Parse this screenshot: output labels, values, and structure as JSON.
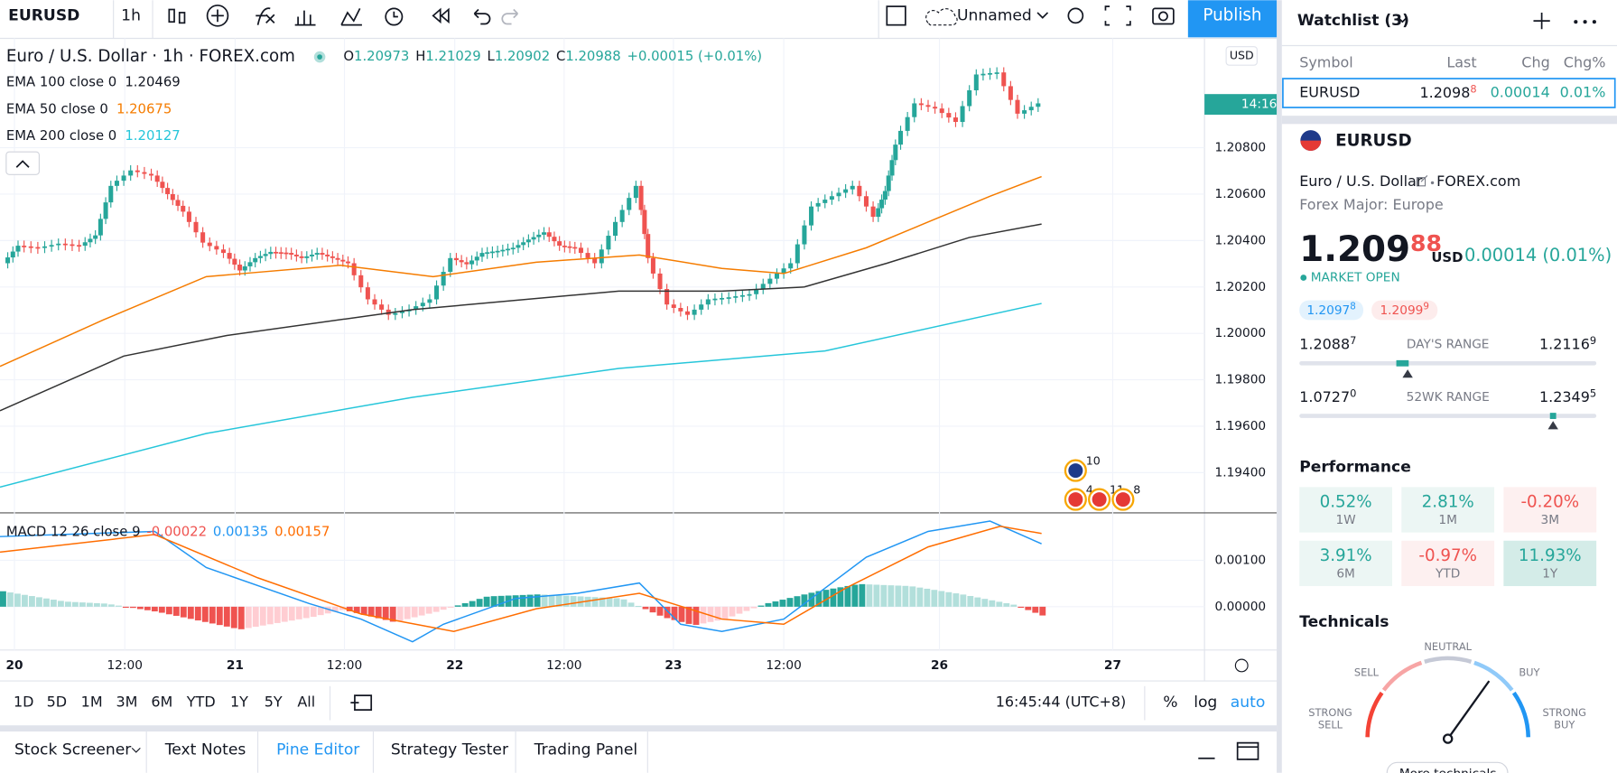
{
  "toolbar": {
    "symbol": "EURUSD",
    "interval": "1h",
    "layout_name": "Unnamed",
    "publish": "Publish"
  },
  "legend": {
    "title": "Euro / U.S. Dollar · 1h · FOREX.com",
    "ohlc": [
      {
        "label": "O",
        "value": "1.20973"
      },
      {
        "label": "H",
        "value": "1.21029"
      },
      {
        "label": "L",
        "value": "1.20902"
      },
      {
        "label": "C",
        "value": "1.20988"
      }
    ],
    "change": "+0.00015 (+0.01%)",
    "indicators": [
      {
        "name": "EMA 100 close 0",
        "value": "1.20469",
        "color": "#131722"
      },
      {
        "name": "EMA 50 close 0",
        "value": "1.20675",
        "color": "#f57c00"
      },
      {
        "name": "EMA 200 close 0",
        "value": "1.20127",
        "color": "#26c6da"
      }
    ]
  },
  "price_axis": {
    "currency": "USD",
    "labels": [
      "1.20800",
      "1.20600",
      "1.20400",
      "1.20200",
      "1.20000",
      "1.19800",
      "1.19600",
      "1.19400"
    ],
    "countdown": "14:16"
  },
  "macd": {
    "name": "MACD 12 26 close 9",
    "values": [
      {
        "value": "-0.00022",
        "color": "#ef5350"
      },
      {
        "value": "0.00135",
        "color": "#2196f3"
      },
      {
        "value": "0.00157",
        "color": "#ff6d00"
      }
    ],
    "axis_labels": [
      "0.00100",
      "0.00000"
    ]
  },
  "time_axis": [
    "20",
    "12:00",
    "21",
    "12:00",
    "22",
    "12:00",
    "23",
    "12:00",
    "26",
    "27"
  ],
  "ranges": [
    "1D",
    "5D",
    "1M",
    "3M",
    "6M",
    "YTD",
    "1Y",
    "5Y",
    "All"
  ],
  "clock": "16:45:44 (UTC+8)",
  "scale_options": [
    "%",
    "log",
    "auto"
  ],
  "tabs": [
    "Stock Screener",
    "Text Notes",
    "Pine Editor",
    "Strategy Tester",
    "Trading Panel"
  ],
  "events": [
    "10",
    "4",
    "11",
    "8"
  ],
  "watchlist": {
    "title": "Watchlist (3)",
    "columns": [
      "Symbol",
      "Last",
      "Chg",
      "Chg%"
    ],
    "rows": [
      {
        "symbol": "EURUSD",
        "last": "1.2098",
        "last_sup": "8",
        "chg": "0.00014",
        "chg_pct": "0.01%"
      }
    ]
  },
  "details": {
    "symbol": "EURUSD",
    "description": "Euro / U.S. Dollar",
    "exchange": "FOREX.com",
    "category": "Forex Major: Europe",
    "price": "1.209",
    "price_sup": "88",
    "currency": "USD",
    "change": "0.00014 (0.01%)",
    "status": "MARKET OPEN",
    "bid": "1.2097",
    "bid_sup": "8",
    "ask": "1.2099",
    "ask_sup": "9",
    "days_range": {
      "label": "DAY'S RANGE",
      "low": "1.2088",
      "low_sup": "7",
      "high": "1.2116",
      "high_sup": "9"
    },
    "week52_range": {
      "label": "52WK RANGE",
      "low": "1.0727",
      "low_sup": "0",
      "high": "1.2349",
      "high_sup": "5"
    }
  },
  "performance": {
    "title": "Performance",
    "items": [
      {
        "value": "0.52%",
        "period": "1W"
      },
      {
        "value": "2.81%",
        "period": "1M"
      },
      {
        "value": "-0.20%",
        "period": "3M"
      },
      {
        "value": "3.91%",
        "period": "6M"
      },
      {
        "value": "-0.97%",
        "period": "YTD"
      },
      {
        "value": "11.93%",
        "period": "1Y"
      }
    ]
  },
  "technicals": {
    "title": "Technicals",
    "gauge": {
      "strong_sell": [
        "STRONG",
        "SELL"
      ],
      "sell": "SELL",
      "neutral": "NEUTRAL",
      "buy": "BUY",
      "strong_buy": [
        "STRONG",
        "BUY"
      ]
    },
    "link": "More technicals"
  }
}
